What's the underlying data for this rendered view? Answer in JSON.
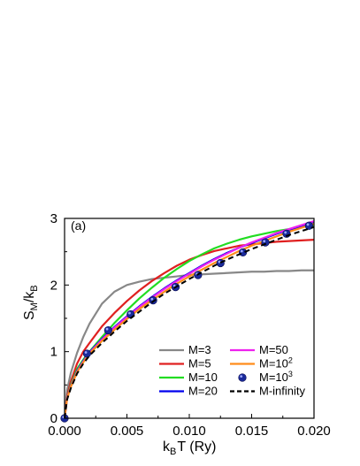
{
  "chart_data": {
    "type": "line",
    "panel_label": "(a)",
    "xlabel": {
      "main": "k",
      "sub": "B",
      "rest": "T (Ry)"
    },
    "ylabel": {
      "s": "S",
      "sub1": "M",
      "slash": "/k",
      "sub2": "B"
    },
    "xlim": [
      0,
      0.02
    ],
    "ylim": [
      0,
      3
    ],
    "xticks": [
      0.0,
      0.005,
      0.01,
      0.015,
      0.02
    ],
    "xtick_labels": [
      "0.000",
      "0.005",
      "0.010",
      "0.015",
      "0.020"
    ],
    "yticks": [
      0,
      1,
      2,
      3
    ],
    "ytick_labels": [
      "0",
      "1",
      "2",
      "3"
    ],
    "legend_position": "bottom-right",
    "x": [
      0.0,
      0.0002,
      0.0005,
      0.001,
      0.0015,
      0.002,
      0.003,
      0.004,
      0.005,
      0.006,
      0.007,
      0.008,
      0.009,
      0.01,
      0.011,
      0.012,
      0.013,
      0.014,
      0.015,
      0.016,
      0.017,
      0.018,
      0.019,
      0.02
    ],
    "series": [
      {
        "name": "M=3",
        "color": "#888888",
        "style": "solid",
        "values": [
          0.0,
          0.42,
          0.68,
          0.98,
          1.22,
          1.42,
          1.72,
          1.9,
          2.0,
          2.05,
          2.09,
          2.11,
          2.13,
          2.15,
          2.16,
          2.17,
          2.18,
          2.19,
          2.2,
          2.2,
          2.21,
          2.21,
          2.22,
          2.22
        ]
      },
      {
        "name": "M=5",
        "color": "#e02020",
        "style": "solid",
        "values": [
          0.0,
          0.33,
          0.55,
          0.82,
          1.0,
          1.13,
          1.38,
          1.58,
          1.76,
          1.92,
          2.06,
          2.18,
          2.29,
          2.38,
          2.45,
          2.51,
          2.55,
          2.59,
          2.61,
          2.63,
          2.65,
          2.66,
          2.67,
          2.68
        ]
      },
      {
        "name": "M=10",
        "color": "#22dd22",
        "style": "solid",
        "values": [
          0.0,
          0.31,
          0.5,
          0.74,
          0.88,
          1.0,
          1.22,
          1.43,
          1.62,
          1.8,
          1.96,
          2.11,
          2.24,
          2.36,
          2.46,
          2.55,
          2.62,
          2.68,
          2.73,
          2.77,
          2.81,
          2.84,
          2.87,
          2.9
        ]
      },
      {
        "name": "M=20",
        "color": "#0000ee",
        "style": "solid",
        "values": [
          0.0,
          0.3,
          0.48,
          0.71,
          0.86,
          0.99,
          1.19,
          1.37,
          1.53,
          1.68,
          1.82,
          1.95,
          2.07,
          2.18,
          2.29,
          2.39,
          2.48,
          2.56,
          2.63,
          2.7,
          2.77,
          2.83,
          2.88,
          2.94
        ]
      },
      {
        "name": "M=50",
        "color": "#ee22ee",
        "style": "solid",
        "values": [
          0.0,
          0.3,
          0.48,
          0.7,
          0.85,
          0.98,
          1.18,
          1.36,
          1.52,
          1.67,
          1.81,
          1.94,
          2.06,
          2.17,
          2.28,
          2.38,
          2.47,
          2.56,
          2.64,
          2.71,
          2.78,
          2.84,
          2.9,
          2.96
        ]
      },
      {
        "name": "M=10",
        "name_sup": "2",
        "color": "#ff8c1a",
        "style": "solid",
        "values": [
          0.0,
          0.29,
          0.47,
          0.69,
          0.84,
          0.97,
          1.16,
          1.33,
          1.49,
          1.64,
          1.77,
          1.9,
          2.02,
          2.13,
          2.23,
          2.33,
          2.42,
          2.51,
          2.59,
          2.66,
          2.73,
          2.8,
          2.86,
          2.92
        ]
      },
      {
        "name": "M=10",
        "name_sup": "3",
        "color": "#1a2a9a",
        "style": "markers",
        "x": [
          0.0,
          0.0018,
          0.0035,
          0.0053,
          0.0071,
          0.0089,
          0.0107,
          0.0125,
          0.0143,
          0.0161,
          0.0178,
          0.0196
        ],
        "values": [
          0.0,
          0.97,
          1.32,
          1.56,
          1.77,
          1.97,
          2.15,
          2.33,
          2.49,
          2.64,
          2.77,
          2.89
        ]
      },
      {
        "name": "M-infinity",
        "color": "#000000",
        "style": "dashed",
        "values": [
          0.0,
          0.28,
          0.45,
          0.67,
          0.82,
          0.94,
          1.13,
          1.3,
          1.46,
          1.6,
          1.74,
          1.87,
          1.98,
          2.09,
          2.19,
          2.29,
          2.38,
          2.46,
          2.54,
          2.61,
          2.68,
          2.75,
          2.81,
          2.87
        ]
      }
    ]
  }
}
